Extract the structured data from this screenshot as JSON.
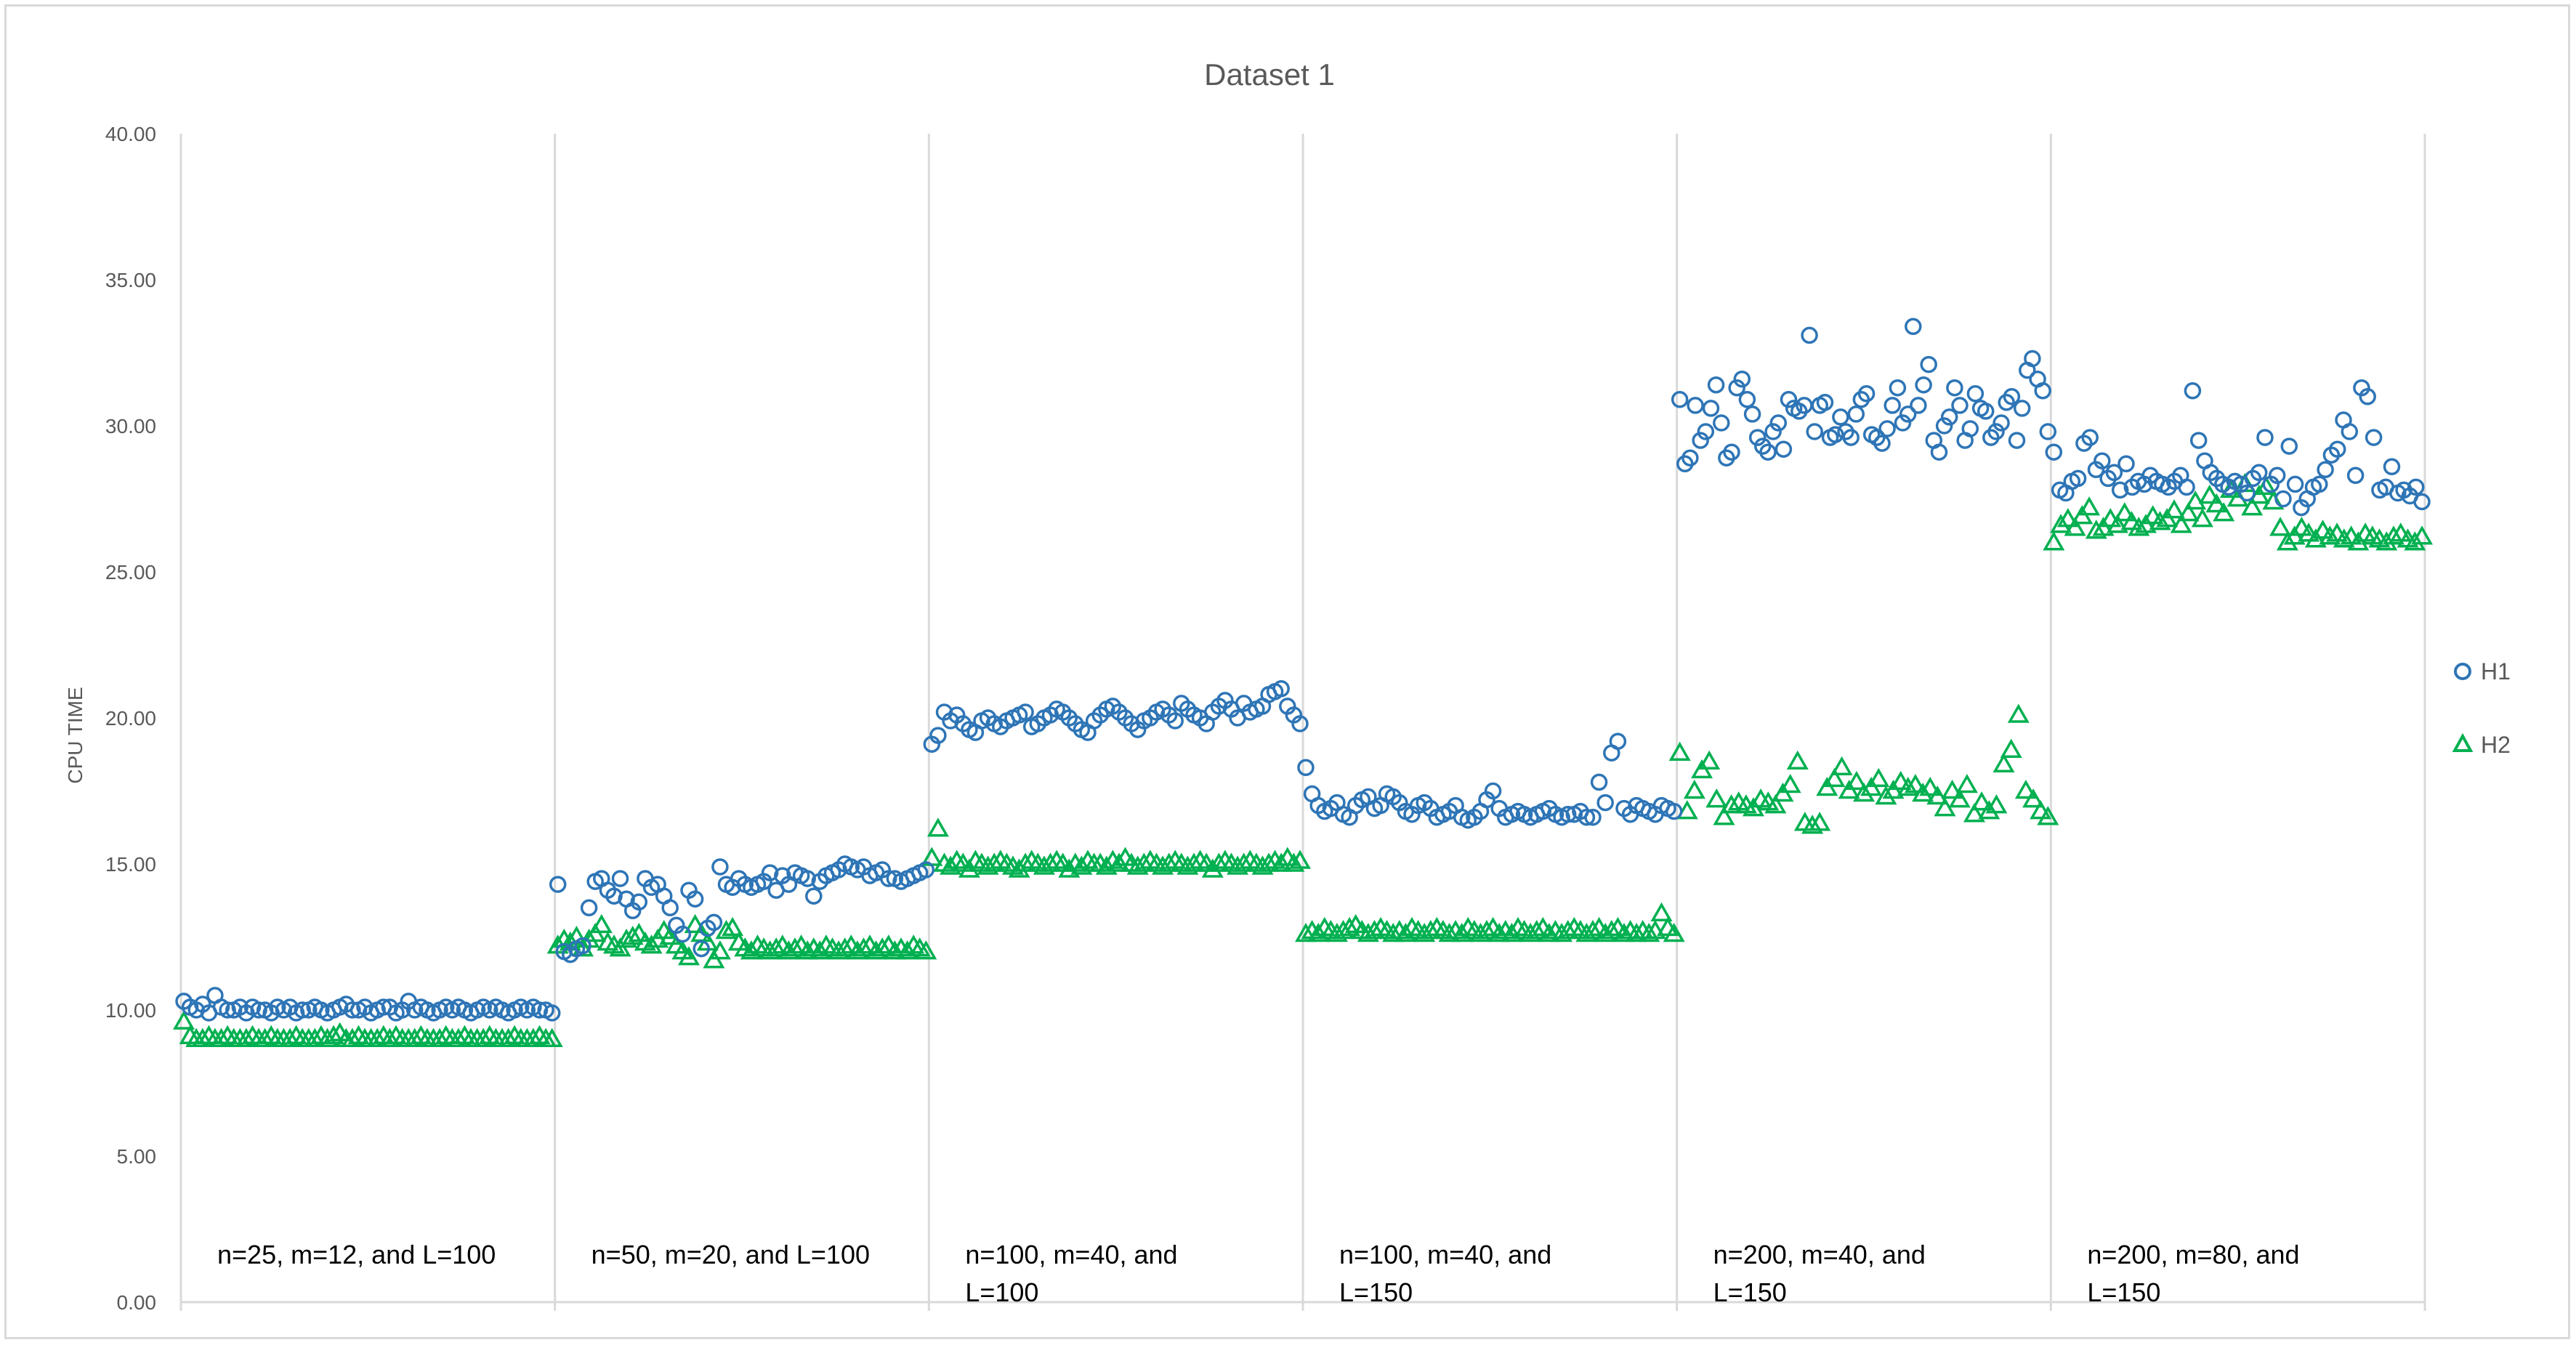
{
  "chart_data": {
    "type": "scatter",
    "title": "Dataset 1",
    "xlabel": "",
    "ylabel": "CPU TIME",
    "ylim": [
      0,
      40
    ],
    "y_ticks": [
      "0.00",
      "5.00",
      "10.00",
      "15.00",
      "20.00",
      "25.00",
      "30.00",
      "35.00",
      "40.00"
    ],
    "grid": "vertical separators between groups",
    "legend_position": "right",
    "groups": [
      {
        "label_line1": "n=25, m=12, and L=100",
        "label_line2": ""
      },
      {
        "label_line1": "n=50, m=20, and L=100",
        "label_line2": ""
      },
      {
        "label_line1": "n=100, m=40, and",
        "label_line2": "L=100"
      },
      {
        "label_line1": "n=100, m=40, and",
        "label_line2": "L=150"
      },
      {
        "label_line1": "n=200, m=40, and",
        "label_line2": "L=150"
      },
      {
        "label_line1": "n=200, m=80, and",
        "label_line2": "L=150"
      }
    ],
    "series": [
      {
        "name": "H1",
        "marker": "circle",
        "color": "#2e75b6",
        "groups": [
          [
            10.3,
            10.1,
            10.0,
            10.2,
            9.9,
            10.5,
            10.1,
            10.0,
            10.0,
            10.1,
            9.9,
            10.1,
            10.0,
            10.0,
            9.9,
            10.1,
            10.0,
            10.1,
            9.9,
            10.0,
            10.0,
            10.1,
            10.0,
            9.9,
            10.0,
            10.1,
            10.2,
            10.0,
            10.0,
            10.1,
            9.9,
            10.0,
            10.1,
            10.1,
            9.9,
            10.0,
            10.3,
            10.0,
            10.1,
            10.0,
            9.9,
            10.0,
            10.1,
            10.0,
            10.1,
            10.0,
            9.9,
            10.0,
            10.1,
            10.0,
            10.1,
            10.0,
            9.9,
            10.0,
            10.1,
            10.0,
            10.1,
            10.0,
            10.0,
            9.9
          ],
          [
            14.3,
            12.0,
            11.9,
            12.1,
            12.2,
            13.5,
            14.4,
            14.5,
            14.1,
            13.9,
            14.5,
            13.8,
            13.4,
            13.7,
            14.5,
            14.2,
            14.3,
            13.9,
            13.5,
            12.9,
            12.6,
            14.1,
            13.8,
            12.1,
            12.8,
            13.0,
            14.9,
            14.3,
            14.2,
            14.5,
            14.3,
            14.2,
            14.3,
            14.4,
            14.7,
            14.1,
            14.6,
            14.3,
            14.7,
            14.6,
            14.5,
            13.9,
            14.4,
            14.6,
            14.7,
            14.8,
            15.0,
            14.9,
            14.8,
            14.9,
            14.6,
            14.7,
            14.8,
            14.5,
            14.5,
            14.4,
            14.5,
            14.6,
            14.7,
            14.8
          ],
          [
            19.1,
            19.4,
            20.2,
            19.9,
            20.1,
            19.8,
            19.6,
            19.5,
            19.9,
            20.0,
            19.8,
            19.7,
            19.9,
            20.0,
            20.1,
            20.2,
            19.7,
            19.8,
            20.0,
            20.1,
            20.3,
            20.2,
            20.0,
            19.8,
            19.6,
            19.5,
            19.9,
            20.1,
            20.3,
            20.4,
            20.2,
            20.0,
            19.8,
            19.6,
            19.9,
            20.0,
            20.2,
            20.3,
            20.1,
            19.9,
            20.5,
            20.3,
            20.1,
            20.0,
            19.8,
            20.2,
            20.4,
            20.6,
            20.3,
            20.0,
            20.5,
            20.2,
            20.3,
            20.4,
            20.8,
            20.9,
            21.0,
            20.4,
            20.1,
            19.8
          ],
          [
            18.3,
            17.4,
            17.0,
            16.8,
            16.9,
            17.1,
            16.7,
            16.6,
            17.0,
            17.2,
            17.3,
            16.9,
            17.0,
            17.4,
            17.3,
            17.1,
            16.8,
            16.7,
            17.0,
            17.1,
            16.9,
            16.6,
            16.7,
            16.8,
            17.0,
            16.6,
            16.5,
            16.6,
            16.8,
            17.2,
            17.5,
            16.9,
            16.6,
            16.7,
            16.8,
            16.7,
            16.6,
            16.7,
            16.8,
            16.9,
            16.7,
            16.6,
            16.7,
            16.7,
            16.8,
            16.6,
            16.6,
            17.8,
            17.1,
            18.8,
            19.2,
            16.9,
            16.7,
            17.0,
            16.9,
            16.8,
            16.7,
            17.0,
            16.9,
            16.8
          ],
          [
            30.9,
            28.7,
            28.9,
            30.7,
            29.5,
            29.8,
            30.6,
            31.4,
            30.1,
            28.9,
            29.1,
            31.3,
            31.6,
            30.9,
            30.4,
            29.6,
            29.3,
            29.1,
            29.8,
            30.1,
            29.2,
            30.9,
            30.6,
            30.5,
            30.7,
            33.1,
            29.8,
            30.7,
            30.8,
            29.6,
            29.7,
            30.3,
            29.8,
            29.6,
            30.4,
            30.9,
            31.1,
            29.7,
            29.6,
            29.4,
            29.9,
            30.7,
            31.3,
            30.1,
            30.4,
            33.4,
            30.7,
            31.4,
            32.1,
            29.5,
            29.1,
            30.0,
            30.3,
            31.3,
            30.7,
            29.5,
            29.9,
            31.1,
            30.6,
            30.5,
            29.6,
            29.8,
            30.1,
            30.8,
            31.0,
            29.5,
            30.6,
            31.9,
            32.3,
            31.6,
            31.2,
            29.8
          ],
          [
            29.1,
            27.8,
            27.7,
            28.1,
            28.2,
            29.4,
            29.6,
            28.5,
            28.8,
            28.2,
            28.4,
            27.8,
            28.7,
            27.9,
            28.1,
            28.0,
            28.3,
            28.1,
            28.0,
            27.9,
            28.1,
            28.3,
            27.9,
            31.2,
            29.5,
            28.8,
            28.4,
            28.2,
            28.0,
            27.9,
            28.1,
            28.0,
            27.7,
            28.2,
            28.4,
            29.6,
            28.0,
            28.3,
            27.5,
            29.3,
            28.0,
            27.2,
            27.5,
            27.9,
            28.0,
            28.5,
            29.0,
            29.2,
            30.2,
            29.8,
            28.3,
            31.3,
            31.0,
            29.6,
            27.8,
            27.9,
            28.6,
            27.7,
            27.8,
            27.6,
            27.9,
            27.4
          ]
        ]
      },
      {
        "name": "H2",
        "marker": "triangle",
        "color": "#00b050",
        "groups": [
          [
            9.6,
            9.1,
            9.0,
            9.0,
            9.1,
            9.0,
            9.0,
            9.1,
            9.0,
            9.0,
            9.0,
            9.1,
            9.0,
            9.0,
            9.1,
            9.0,
            9.0,
            9.0,
            9.1,
            9.0,
            9.0,
            9.0,
            9.1,
            9.0,
            9.1,
            9.2,
            9.0,
            9.0,
            9.1,
            9.0,
            9.0,
            9.0,
            9.1,
            9.0,
            9.1,
            9.0,
            9.0,
            9.0,
            9.1,
            9.0,
            9.0,
            9.0,
            9.1,
            9.0,
            9.0,
            9.1,
            9.0,
            9.0,
            9.0,
            9.1,
            9.0,
            9.0,
            9.0,
            9.1,
            9.0,
            9.0,
            9.0,
            9.1,
            9.0,
            9.0
          ],
          [
            12.2,
            12.4,
            12.3,
            12.5,
            12.1,
            12.4,
            12.6,
            12.9,
            12.3,
            12.2,
            12.1,
            12.4,
            12.5,
            12.6,
            12.3,
            12.2,
            12.4,
            12.7,
            12.5,
            12.2,
            12.0,
            11.8,
            12.9,
            12.6,
            12.3,
            11.7,
            12.0,
            12.7,
            12.8,
            12.3,
            12.1,
            12.0,
            12.2,
            12.1,
            12.0,
            12.1,
            12.2,
            12.0,
            12.1,
            12.2,
            12.0,
            12.1,
            12.0,
            12.2,
            12.1,
            12.0,
            12.1,
            12.2,
            12.0,
            12.1,
            12.2,
            12.0,
            12.1,
            12.2,
            12.0,
            12.1,
            12.0,
            12.2,
            12.1,
            12.0
          ],
          [
            15.2,
            16.2,
            15.0,
            14.9,
            15.1,
            15.0,
            14.8,
            15.1,
            15.0,
            14.9,
            15.0,
            15.1,
            15.0,
            14.9,
            14.8,
            15.0,
            15.1,
            15.0,
            14.9,
            15.0,
            15.1,
            15.0,
            14.8,
            15.0,
            14.9,
            15.1,
            15.0,
            15.0,
            14.9,
            15.1,
            15.0,
            15.2,
            15.0,
            14.9,
            15.0,
            15.1,
            15.0,
            14.9,
            15.0,
            15.1,
            15.0,
            14.9,
            15.0,
            15.1,
            15.0,
            14.8,
            15.0,
            15.1,
            15.0,
            14.9,
            15.0,
            15.1,
            15.0,
            14.9,
            15.0,
            15.1,
            15.0,
            15.2,
            15.0,
            15.1
          ],
          [
            12.6,
            12.7,
            12.6,
            12.8,
            12.7,
            12.6,
            12.7,
            12.8,
            12.9,
            12.7,
            12.6,
            12.7,
            12.8,
            12.7,
            12.6,
            12.7,
            12.6,
            12.8,
            12.7,
            12.6,
            12.7,
            12.8,
            12.7,
            12.6,
            12.7,
            12.6,
            12.8,
            12.7,
            12.6,
            12.7,
            12.8,
            12.6,
            12.7,
            12.6,
            12.8,
            12.7,
            12.6,
            12.7,
            12.8,
            12.6,
            12.7,
            12.6,
            12.7,
            12.8,
            12.7,
            12.6,
            12.7,
            12.8,
            12.6,
            12.7,
            12.8,
            12.6,
            12.7,
            12.6,
            12.7,
            12.6,
            12.7,
            13.3,
            12.8,
            12.6
          ],
          [
            18.8,
            16.8,
            17.5,
            18.2,
            18.5,
            17.2,
            16.6,
            17.0,
            17.1,
            17.0,
            16.9,
            17.2,
            17.1,
            17.0,
            17.4,
            17.7,
            18.5,
            16.4,
            16.3,
            16.4,
            17.6,
            17.9,
            18.3,
            17.5,
            17.8,
            17.4,
            17.6,
            17.9,
            17.3,
            17.5,
            17.8,
            17.6,
            17.7,
            17.4,
            17.6,
            17.3,
            16.9,
            17.5,
            17.2,
            17.7,
            16.7,
            17.1,
            16.8,
            17.0,
            18.4,
            18.9,
            20.1,
            17.5,
            17.2,
            16.8,
            16.6
          ]
        ],
        "groups_tail": [
          26.0,
          26.6,
          26.8,
          26.5,
          26.9,
          27.2,
          26.4,
          26.5,
          26.8,
          26.6,
          27.0,
          26.7,
          26.5,
          26.6,
          26.9,
          26.7,
          26.8,
          27.1,
          26.6,
          27.0,
          27.4,
          26.8,
          27.6,
          27.3,
          27.0,
          27.8,
          27.5,
          28.0,
          27.2,
          27.6,
          27.9,
          27.4,
          26.5,
          26.0,
          26.2,
          26.5,
          26.3,
          26.1,
          26.4,
          26.2,
          26.3,
          26.1,
          26.2,
          26.0,
          26.3,
          26.2,
          26.1,
          26.0,
          26.2,
          26.3,
          26.1,
          26.0,
          26.2
        ]
      }
    ]
  }
}
